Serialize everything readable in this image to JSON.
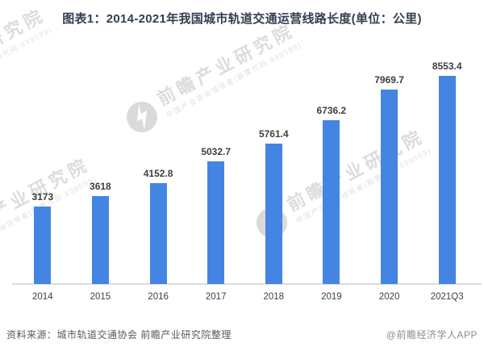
{
  "chart_data": {
    "type": "bar",
    "title": "图表1：2014-2021年我国城市轨道交通运营线路长度(单位：公里)",
    "categories": [
      "2014",
      "2015",
      "2016",
      "2017",
      "2018",
      "2019",
      "2020",
      "2021Q3"
    ],
    "values": [
      3173,
      3618,
      4152.8,
      5032.7,
      5761.4,
      6736.2,
      7969.7,
      8553.4
    ],
    "value_labels": [
      "3173",
      "3618",
      "4152.8",
      "5032.7",
      "5761.4",
      "6736.2",
      "7969.7",
      "8553.4"
    ],
    "xlabel": "",
    "ylabel": "",
    "unit": "公里",
    "ylim": [
      0,
      9000
    ],
    "grid": false,
    "legend": "none",
    "bar_color": "#4484e3",
    "axis_line_color": "#dcdcdc"
  },
  "footer": {
    "source": "资料来源：城市轨道交通协会 前瞻产业研究院整理",
    "credit": "@前瞻经济学人APP"
  },
  "watermark": {
    "brand": "前瞻产业研究院",
    "tagline": "中国产业咨询领导者(股票代码:839599)"
  }
}
